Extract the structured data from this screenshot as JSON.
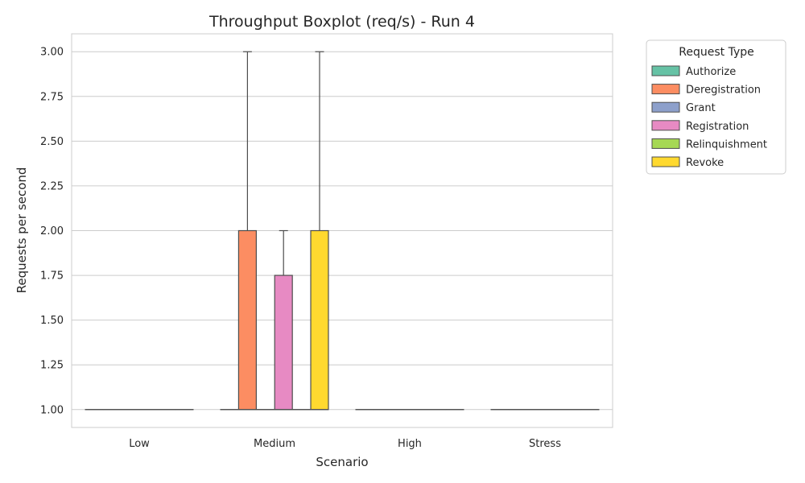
{
  "chart_data": {
    "type": "boxplot",
    "title": "Throughput Boxplot (req/s) - Run 4",
    "xlabel": "Scenario",
    "ylabel": "Requests per second",
    "categories": [
      "Low",
      "Medium",
      "High",
      "Stress"
    ],
    "ylim": [
      0.9,
      3.1
    ],
    "yticks": [
      "1.00",
      "1.25",
      "1.50",
      "1.75",
      "2.00",
      "2.25",
      "2.50",
      "2.75",
      "3.00"
    ],
    "grid": "horizontal",
    "legend": {
      "title": "Request Type",
      "placement": "outside-top-right"
    },
    "series": [
      {
        "name": "Authorize",
        "color": "#66c2a5",
        "boxes": [
          {
            "min": 1,
            "q1": 1,
            "median": 1,
            "q3": 1,
            "max": 1
          },
          {
            "min": 1,
            "q1": 1,
            "median": 1,
            "q3": 1,
            "max": 1
          },
          {
            "min": 1,
            "q1": 1,
            "median": 1,
            "q3": 1,
            "max": 1
          },
          {
            "min": 1,
            "q1": 1,
            "median": 1,
            "q3": 1,
            "max": 1
          }
        ]
      },
      {
        "name": "Deregistration",
        "color": "#fc8d62",
        "boxes": [
          {
            "min": 1,
            "q1": 1,
            "median": 1,
            "q3": 1,
            "max": 1
          },
          {
            "min": 1,
            "q1": 1,
            "median": 1,
            "q3": 2,
            "max": 3
          },
          {
            "min": 1,
            "q1": 1,
            "median": 1,
            "q3": 1,
            "max": 1
          },
          {
            "min": 1,
            "q1": 1,
            "median": 1,
            "q3": 1,
            "max": 1
          }
        ]
      },
      {
        "name": "Grant",
        "color": "#8da0cb",
        "boxes": [
          {
            "min": 1,
            "q1": 1,
            "median": 1,
            "q3": 1,
            "max": 1
          },
          {
            "min": 1,
            "q1": 1,
            "median": 1,
            "q3": 1,
            "max": 1
          },
          {
            "min": 1,
            "q1": 1,
            "median": 1,
            "q3": 1,
            "max": 1
          },
          {
            "min": 1,
            "q1": 1,
            "median": 1,
            "q3": 1,
            "max": 1
          }
        ]
      },
      {
        "name": "Registration",
        "color": "#e78ac3",
        "boxes": [
          {
            "min": 1,
            "q1": 1,
            "median": 1,
            "q3": 1,
            "max": 1
          },
          {
            "min": 1,
            "q1": 1,
            "median": 1,
            "q3": 1.75,
            "max": 2
          },
          {
            "min": 1,
            "q1": 1,
            "median": 1,
            "q3": 1,
            "max": 1
          },
          {
            "min": 1,
            "q1": 1,
            "median": 1,
            "q3": 1,
            "max": 1
          }
        ]
      },
      {
        "name": "Relinquishment",
        "color": "#a6d854",
        "boxes": [
          {
            "min": 1,
            "q1": 1,
            "median": 1,
            "q3": 1,
            "max": 1
          },
          {
            "min": 1,
            "q1": 1,
            "median": 1,
            "q3": 1,
            "max": 1
          },
          {
            "min": 1,
            "q1": 1,
            "median": 1,
            "q3": 1,
            "max": 1
          },
          {
            "min": 1,
            "q1": 1,
            "median": 1,
            "q3": 1,
            "max": 1
          }
        ]
      },
      {
        "name": "Revoke",
        "color": "#ffd92f",
        "boxes": [
          {
            "min": 1,
            "q1": 1,
            "median": 1,
            "q3": 1,
            "max": 1
          },
          {
            "min": 1,
            "q1": 1,
            "median": 1,
            "q3": 2,
            "max": 3
          },
          {
            "min": 1,
            "q1": 1,
            "median": 1,
            "q3": 1,
            "max": 1
          },
          {
            "min": 1,
            "q1": 1,
            "median": 1,
            "q3": 1,
            "max": 1
          }
        ]
      }
    ]
  }
}
